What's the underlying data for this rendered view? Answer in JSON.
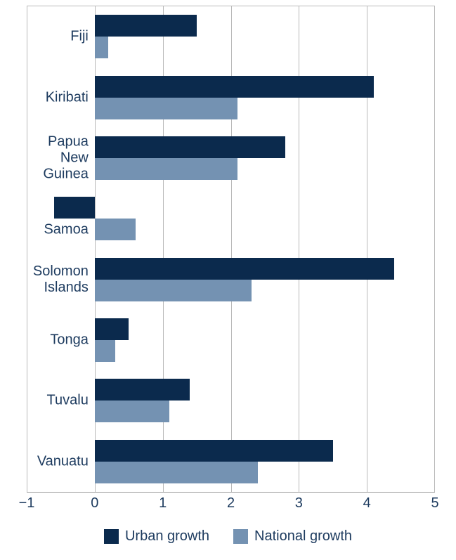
{
  "chart_data": {
    "type": "bar",
    "orientation": "horizontal",
    "title": "",
    "xlabel": "",
    "ylabel": "",
    "xlim": [
      -1,
      5
    ],
    "xticks": [
      -1,
      0,
      1,
      2,
      3,
      4,
      5
    ],
    "xtick_labels": [
      "−1",
      "0",
      "1",
      "2",
      "3",
      "4",
      "5"
    ],
    "grid": "vertical",
    "legend_position": "bottom",
    "categories": [
      "Fiji",
      "Kiribati",
      "Papua New Guinea",
      "Samoa",
      "Solomon Islands",
      "Tonga",
      "Tuvalu",
      "Vanuatu"
    ],
    "category_lines": [
      [
        "Fiji"
      ],
      [
        "Kiribati"
      ],
      [
        "Papua",
        "New",
        "Guinea"
      ],
      [
        "Samoa"
      ],
      [
        "Solomon",
        "Islands"
      ],
      [
        "Tonga"
      ],
      [
        "Tuvalu"
      ],
      [
        "Vanuatu"
      ]
    ],
    "series": [
      {
        "name": "Urban growth",
        "color": "#0b2a4d",
        "values": [
          1.5,
          4.1,
          2.8,
          -0.6,
          4.4,
          0.5,
          1.4,
          3.5
        ]
      },
      {
        "name": "National growth",
        "color": "#7492b2",
        "values": [
          0.2,
          2.1,
          2.1,
          0.6,
          2.3,
          0.3,
          1.1,
          2.4
        ]
      }
    ]
  },
  "legend": {
    "items": [
      {
        "label": "Urban growth",
        "color": "#0b2a4d"
      },
      {
        "label": "National growth",
        "color": "#7492b2"
      }
    ]
  },
  "colors": {
    "background": "#ffffff",
    "text": "#1c3a5e",
    "gridline": "#b9b9b9",
    "axis_line": "#9b9b9b",
    "urban": "#0b2a4d",
    "national": "#7492b2"
  }
}
